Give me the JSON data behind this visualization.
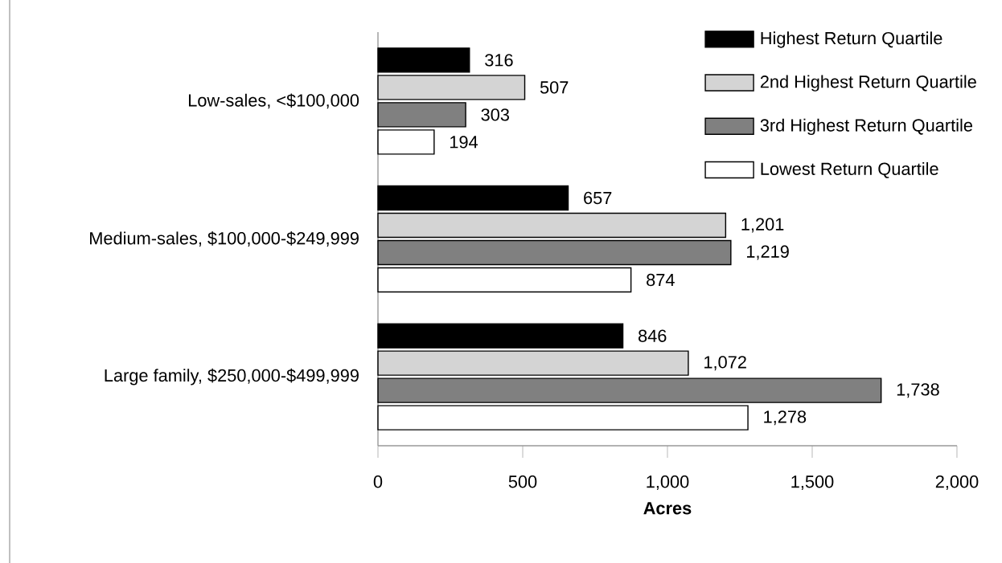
{
  "chart_data": {
    "type": "bar",
    "orientation": "horizontal",
    "xlabel": "Acres",
    "categories": [
      "Low-sales, <$100,000",
      "Medium-sales, $100,000-$249,999",
      "Large family, $250,000-$499,999"
    ],
    "series": [
      {
        "name": "Highest Return Quartile",
        "color": "#000000",
        "values": [
          316,
          657,
          846
        ],
        "value_labels": [
          "316",
          "657",
          "846"
        ]
      },
      {
        "name": "2nd Highest Return Quartile",
        "color": "#d4d4d4",
        "values": [
          507,
          1201,
          1072
        ],
        "value_labels": [
          "507",
          "1,201",
          "1,072"
        ]
      },
      {
        "name": "3rd Highest Return Quartile",
        "color": "#808080",
        "values": [
          303,
          1219,
          1738
        ],
        "value_labels": [
          "303",
          "1,219",
          "1,738"
        ]
      },
      {
        "name": "Lowest Return Quartile",
        "color": "#ffffff",
        "values": [
          194,
          874,
          1278
        ],
        "value_labels": [
          "194",
          "874",
          "1,278"
        ]
      }
    ],
    "xlim": [
      0,
      2000
    ],
    "xticks": [
      0,
      500,
      {
        "value": 1000,
        "label": "1,000"
      },
      {
        "value": 1500,
        "label": "1,500"
      },
      {
        "value": 2000,
        "label": "2,000"
      }
    ],
    "grid": false,
    "legend": "top right"
  }
}
